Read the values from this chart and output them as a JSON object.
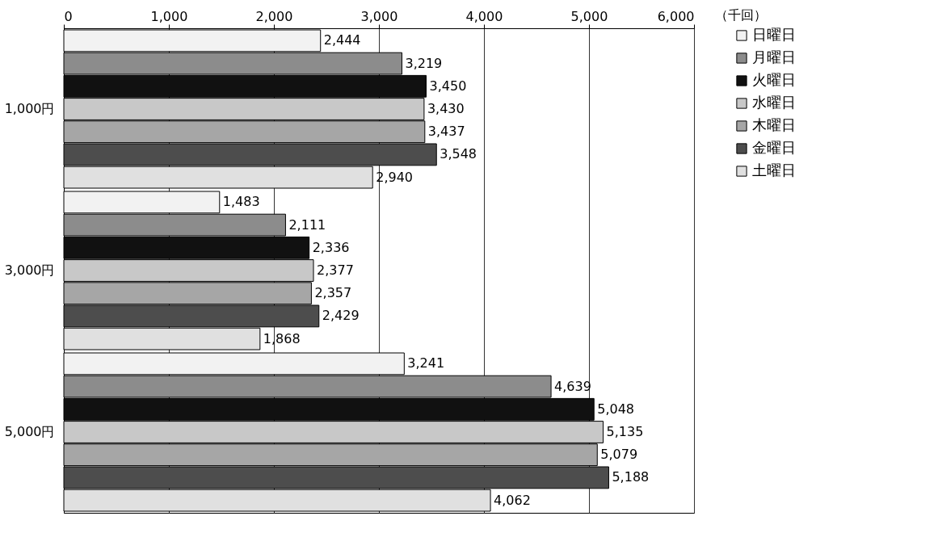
{
  "chart_data": {
    "type": "bar",
    "orientation": "horizontal",
    "xlabel": "（千回）",
    "categories": [
      "1,000円",
      "3,000円",
      "5,000円"
    ],
    "series": [
      {
        "name": "日曜日",
        "color": "#f2f2f2",
        "values": [
          2444,
          1483,
          3241
        ],
        "value_labels": [
          "2,444",
          "1,483",
          "3,241"
        ]
      },
      {
        "name": "月曜日",
        "color": "#8c8c8c",
        "values": [
          3219,
          2111,
          4639
        ],
        "value_labels": [
          "3,219",
          "2,111",
          "4,639"
        ]
      },
      {
        "name": "火曜日",
        "color": "#111111",
        "values": [
          3450,
          2336,
          5048
        ],
        "value_labels": [
          "3,450",
          "2,336",
          "5,048"
        ]
      },
      {
        "name": "水曜日",
        "color": "#c8c8c8",
        "values": [
          3430,
          2377,
          5135
        ],
        "value_labels": [
          "3,430",
          "2,377",
          "5,135"
        ]
      },
      {
        "name": "木曜日",
        "color": "#a6a6a6",
        "values": [
          3437,
          2357,
          5079
        ],
        "value_labels": [
          "3,437",
          "2,357",
          "5,079"
        ]
      },
      {
        "name": "金曜日",
        "color": "#4d4d4d",
        "values": [
          3548,
          2429,
          5188
        ],
        "value_labels": [
          "3,548",
          "2,429",
          "5,188"
        ]
      },
      {
        "name": "土曜日",
        "color": "#e0e0e0",
        "values": [
          2940,
          1868,
          4062
        ],
        "value_labels": [
          "2,940",
          "1,868",
          "4,062"
        ]
      }
    ],
    "xlim": [
      0,
      6000
    ],
    "xticks": [
      0,
      {
        "value": 1000,
        "label": "1,000"
      },
      {
        "value": 2000,
        "label": "2,000"
      },
      {
        "value": 3000,
        "label": "3,000"
      },
      {
        "value": 4000,
        "label": "4,000"
      },
      {
        "value": 5000,
        "label": "5,000"
      },
      {
        "value": 6000,
        "label": "6,000"
      }
    ],
    "grid": "x",
    "legend": "right"
  }
}
